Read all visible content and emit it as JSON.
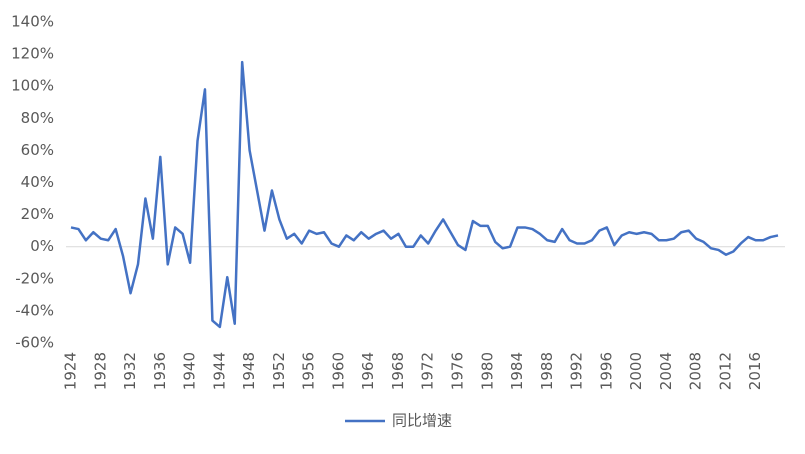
{
  "chart_data": {
    "type": "line",
    "x": [
      1924,
      1925,
      1926,
      1927,
      1928,
      1929,
      1930,
      1931,
      1932,
      1933,
      1934,
      1935,
      1936,
      1937,
      1938,
      1939,
      1940,
      1941,
      1942,
      1943,
      1944,
      1945,
      1946,
      1947,
      1948,
      1949,
      1950,
      1951,
      1952,
      1953,
      1954,
      1955,
      1956,
      1957,
      1958,
      1959,
      1960,
      1961,
      1962,
      1963,
      1964,
      1965,
      1966,
      1967,
      1968,
      1969,
      1970,
      1971,
      1972,
      1973,
      1974,
      1975,
      1976,
      1977,
      1978,
      1979,
      1980,
      1981,
      1982,
      1983,
      1984,
      1985,
      1986,
      1987,
      1988,
      1989,
      1990,
      1991,
      1992,
      1993,
      1994,
      1995,
      1996,
      1997,
      1998,
      1999,
      2000,
      2001,
      2002,
      2003,
      2004,
      2005,
      2006,
      2007,
      2008,
      2009,
      2010,
      2011,
      2012,
      2013,
      2014,
      2015,
      2016,
      2017,
      2018,
      2019
    ],
    "series": [
      {
        "name": "同比增速",
        "color": "#4472c4",
        "values": [
          12,
          11,
          4,
          9,
          5,
          4,
          11,
          -6,
          -29,
          -11,
          30,
          5,
          56,
          -11,
          12,
          8,
          -10,
          66,
          98,
          -46,
          -50,
          -19,
          -48,
          115,
          60,
          35,
          10,
          35,
          17,
          5,
          8,
          2,
          10,
          8,
          9,
          2,
          0,
          7,
          4,
          9,
          5,
          8,
          10,
          5,
          8,
          0,
          0,
          7,
          2,
          10,
          17,
          9,
          1,
          -2,
          16,
          13,
          13,
          3,
          -1,
          0,
          12,
          12,
          11,
          8,
          4,
          3,
          11,
          4,
          2,
          2,
          4,
          10,
          12,
          1,
          7,
          9,
          8,
          9,
          8,
          4,
          4,
          5,
          9,
          10,
          5,
          3,
          -1,
          -2,
          -5,
          -3,
          2,
          6,
          4,
          4,
          6,
          7
        ]
      }
    ],
    "xlim": [
      1924,
      2019
    ],
    "xticks": [
      1924,
      1928,
      1932,
      1936,
      1940,
      1944,
      1948,
      1952,
      1956,
      1960,
      1964,
      1968,
      1972,
      1976,
      1980,
      1984,
      1988,
      1992,
      1996,
      2000,
      2004,
      2008,
      2012,
      2016
    ],
    "ylim": [
      -60,
      140
    ],
    "yticks": [
      {
        "value": -60,
        "label": "-60%"
      },
      {
        "value": -40,
        "label": "-40%"
      },
      {
        "value": -20,
        "label": "-20%"
      },
      {
        "value": 0,
        "label": "0%"
      },
      {
        "value": 20,
        "label": "20%"
      },
      {
        "value": 40,
        "label": "40%"
      },
      {
        "value": 60,
        "label": "60%"
      },
      {
        "value": 80,
        "label": "80%"
      },
      {
        "value": 100,
        "label": "100%"
      },
      {
        "value": 120,
        "label": "120%"
      },
      {
        "value": 140,
        "label": "140%"
      }
    ],
    "legend": "bottom"
  }
}
